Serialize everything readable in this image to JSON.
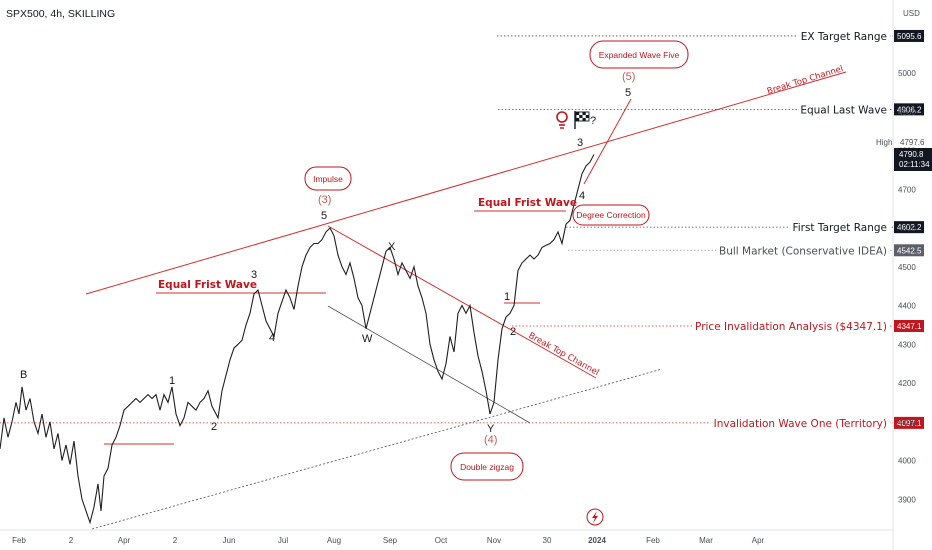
{
  "header": {
    "symbol_title": "SPX500, 4h, SKILLING",
    "currency": "USD"
  },
  "chart_data": {
    "type": "line",
    "title": "SPX500, 4h, SKILLING",
    "ylim": [
      3820,
      5200
    ],
    "y_ticks": [
      3900,
      4000,
      4100,
      4200,
      4300,
      4400,
      4500,
      4600,
      4700,
      4800,
      4900,
      5000
    ],
    "x_tick_labels": [
      "Feb",
      "2",
      "Apr",
      "2",
      "Jun",
      "Jul",
      "Aug",
      "Sep",
      "Oct",
      "Nov",
      "30",
      "2024",
      "Feb",
      "Mar",
      "Apr"
    ],
    "price_path": [
      [
        0,
        4030
      ],
      [
        4,
        4110
      ],
      [
        8,
        4060
      ],
      [
        12,
        4100
      ],
      [
        16,
        4150
      ],
      [
        19,
        4120
      ],
      [
        22,
        4190
      ],
      [
        26,
        4130
      ],
      [
        30,
        4160
      ],
      [
        34,
        4100
      ],
      [
        38,
        4070
      ],
      [
        42,
        4120
      ],
      [
        46,
        4060
      ],
      [
        50,
        4100
      ],
      [
        54,
        4030
      ],
      [
        58,
        4070
      ],
      [
        62,
        4000
      ],
      [
        66,
        4040
      ],
      [
        70,
        3990
      ],
      [
        74,
        4050
      ],
      [
        78,
        3960
      ],
      [
        82,
        3900
      ],
      [
        86,
        3870
      ],
      [
        90,
        3840
      ],
      [
        94,
        3880
      ],
      [
        98,
        3940
      ],
      [
        101,
        3870
      ],
      [
        104,
        3960
      ],
      [
        108,
        3980
      ],
      [
        112,
        4040
      ],
      [
        116,
        4060
      ],
      [
        120,
        4090
      ],
      [
        124,
        4130
      ],
      [
        128,
        4140
      ],
      [
        132,
        4150
      ],
      [
        136,
        4160
      ],
      [
        140,
        4150
      ],
      [
        144,
        4160
      ],
      [
        148,
        4170
      ],
      [
        152,
        4160
      ],
      [
        156,
        4170
      ],
      [
        160,
        4130
      ],
      [
        164,
        4170
      ],
      [
        168,
        4150
      ],
      [
        172,
        4190
      ],
      [
        176,
        4120
      ],
      [
        180,
        4090
      ],
      [
        184,
        4110
      ],
      [
        188,
        4150
      ],
      [
        192,
        4140
      ],
      [
        196,
        4130
      ],
      [
        200,
        4150
      ],
      [
        204,
        4160
      ],
      [
        208,
        4180
      ],
      [
        212,
        4140
      ],
      [
        216,
        4120
      ],
      [
        218,
        4110
      ],
      [
        222,
        4180
      ],
      [
        226,
        4220
      ],
      [
        230,
        4260
      ],
      [
        234,
        4290
      ],
      [
        238,
        4300
      ],
      [
        242,
        4310
      ],
      [
        246,
        4350
      ],
      [
        250,
        4380
      ],
      [
        254,
        4430
      ],
      [
        258,
        4440
      ],
      [
        262,
        4400
      ],
      [
        266,
        4360
      ],
      [
        270,
        4340
      ],
      [
        274,
        4320
      ],
      [
        278,
        4380
      ],
      [
        282,
        4410
      ],
      [
        286,
        4440
      ],
      [
        290,
        4420
      ],
      [
        294,
        4390
      ],
      [
        298,
        4450
      ],
      [
        302,
        4500
      ],
      [
        306,
        4530
      ],
      [
        310,
        4550
      ],
      [
        314,
        4560
      ],
      [
        318,
        4560
      ],
      [
        322,
        4570
      ],
      [
        326,
        4590
      ],
      [
        330,
        4600
      ],
      [
        334,
        4580
      ],
      [
        338,
        4530
      ],
      [
        342,
        4500
      ],
      [
        346,
        4480
      ],
      [
        350,
        4510
      ],
      [
        354,
        4470
      ],
      [
        358,
        4420
      ],
      [
        362,
        4400
      ],
      [
        366,
        4340
      ],
      [
        370,
        4380
      ],
      [
        374,
        4420
      ],
      [
        378,
        4460
      ],
      [
        382,
        4500
      ],
      [
        386,
        4540
      ],
      [
        390,
        4550
      ],
      [
        394,
        4520
      ],
      [
        398,
        4480
      ],
      [
        402,
        4510
      ],
      [
        406,
        4490
      ],
      [
        410,
        4470
      ],
      [
        414,
        4500
      ],
      [
        418,
        4450
      ],
      [
        422,
        4420
      ],
      [
        426,
        4380
      ],
      [
        430,
        4300
      ],
      [
        434,
        4260
      ],
      [
        438,
        4230
      ],
      [
        442,
        4210
      ],
      [
        446,
        4250
      ],
      [
        450,
        4320
      ],
      [
        454,
        4280
      ],
      [
        458,
        4380
      ],
      [
        462,
        4400
      ],
      [
        466,
        4380
      ],
      [
        470,
        4400
      ],
      [
        474,
        4330
      ],
      [
        478,
        4270
      ],
      [
        482,
        4230
      ],
      [
        486,
        4180
      ],
      [
        490,
        4120
      ],
      [
        494,
        4150
      ],
      [
        498,
        4260
      ],
      [
        502,
        4340
      ],
      [
        506,
        4370
      ],
      [
        510,
        4380
      ],
      [
        514,
        4400
      ],
      [
        518,
        4490
      ],
      [
        522,
        4510
      ],
      [
        526,
        4520
      ],
      [
        530,
        4530
      ],
      [
        534,
        4520
      ],
      [
        538,
        4530
      ],
      [
        542,
        4550
      ],
      [
        546,
        4555
      ],
      [
        550,
        4560
      ],
      [
        554,
        4570
      ],
      [
        558,
        4590
      ],
      [
        562,
        4560
      ],
      [
        566,
        4610
      ],
      [
        570,
        4620
      ],
      [
        574,
        4660
      ],
      [
        578,
        4700
      ],
      [
        582,
        4740
      ],
      [
        586,
        4760
      ],
      [
        590,
        4770
      ],
      [
        594,
        4790
      ]
    ],
    "levels": [
      {
        "label": "EX Target Range",
        "price_label": "5095.6",
        "value": 5095.6
      },
      {
        "label": "Equal Last Wave",
        "price_label": "4906.2",
        "value": 4906.2
      },
      {
        "label": "First Target Range",
        "price_label": "4602.2",
        "value": 4602.2
      },
      {
        "label": "Bull Market (Conservative IDEA)",
        "price_label": "4542.5",
        "value": 4542.5
      },
      {
        "label": "Price Invalidation Analysis ($4347.1)",
        "price_label": "4347.1",
        "value": 4347.1
      },
      {
        "label": "Invalidation Wave One (Territory)",
        "price_label": "4097.1",
        "value": 4097.1
      }
    ],
    "current_price": {
      "value": "4790.8",
      "countdown": "02:11:34"
    },
    "high": {
      "label": "High",
      "value": "4797.6"
    },
    "wave_labels": [
      "B",
      "1",
      "2",
      "3",
      "4",
      "(3)",
      "5",
      "W",
      "X",
      "Y",
      "(4)",
      "1",
      "2",
      "3",
      "4",
      "5",
      "(5)"
    ],
    "annotations": {
      "impulse": "Impulse",
      "double_zigzag": "Double zigzag",
      "expanded_wave_five": "Expanded Wave Five",
      "degree_correction": "Degree Correction",
      "equal_frist_wave": "Equal Frist Wave",
      "break_top_channel": "Break Top Channel",
      "question_mark": "?"
    }
  }
}
